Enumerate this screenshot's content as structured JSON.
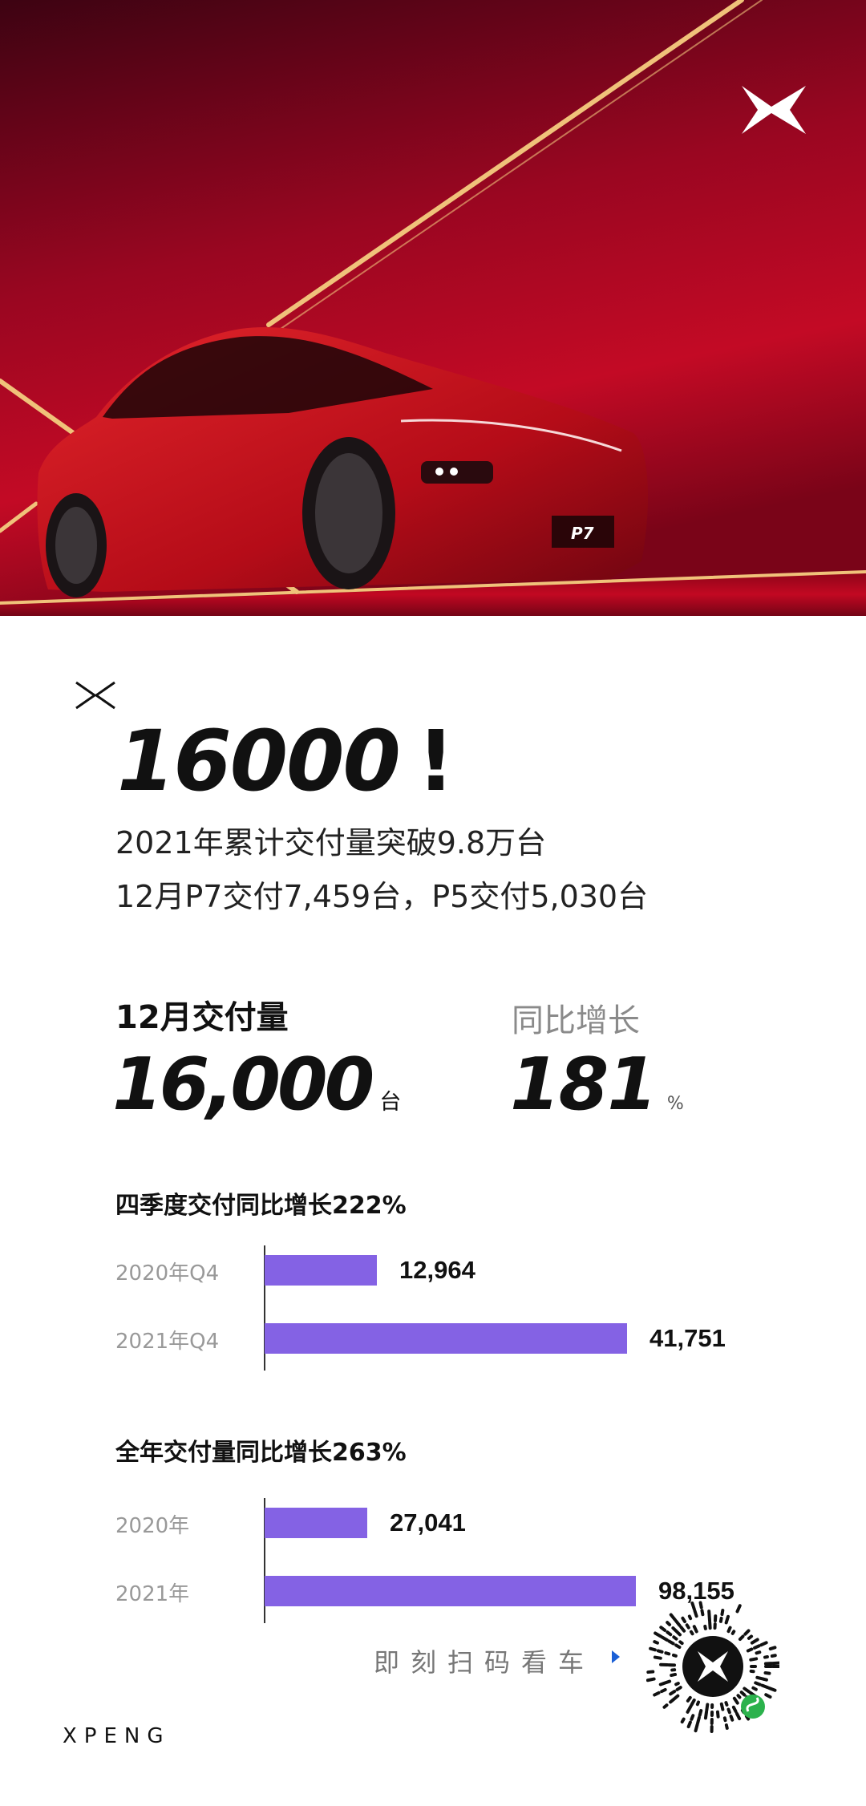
{
  "hero": {
    "model_badge": "P7",
    "logo": "xpeng-x-logo"
  },
  "headline": {
    "big_number": "16000",
    "exclaim": "!",
    "line1": "2021年累计交付量突破9.8万台",
    "line2": "12月P7交付7,459台，P5交付5,030台"
  },
  "stats": {
    "monthly_label": "12月交付量",
    "monthly_value": "16,000",
    "monthly_unit": "台",
    "yoy_label": "同比增长",
    "yoy_value": "181",
    "yoy_unit": "%"
  },
  "chart_data": [
    {
      "type": "bar",
      "title": "四季度交付同比增长222%",
      "categories": [
        "2020年Q4",
        "2021年Q4"
      ],
      "values": [
        12964,
        41751
      ],
      "value_labels": [
        "12,964",
        "41,751"
      ],
      "orientation": "horizontal",
      "color": "#8462e4"
    },
    {
      "type": "bar",
      "title": "全年交付量同比增长263%",
      "categories": [
        "2020年",
        "2021年"
      ],
      "values": [
        27041,
        98155
      ],
      "value_labels": [
        "27,041",
        "98,155"
      ],
      "orientation": "horizontal",
      "color": "#8462e4"
    }
  ],
  "footer": {
    "scan_text": "即刻扫码看车",
    "brand": "XPENG",
    "arrow_color": "#1a5fd6",
    "mini_program_color": "#2bb24c"
  }
}
